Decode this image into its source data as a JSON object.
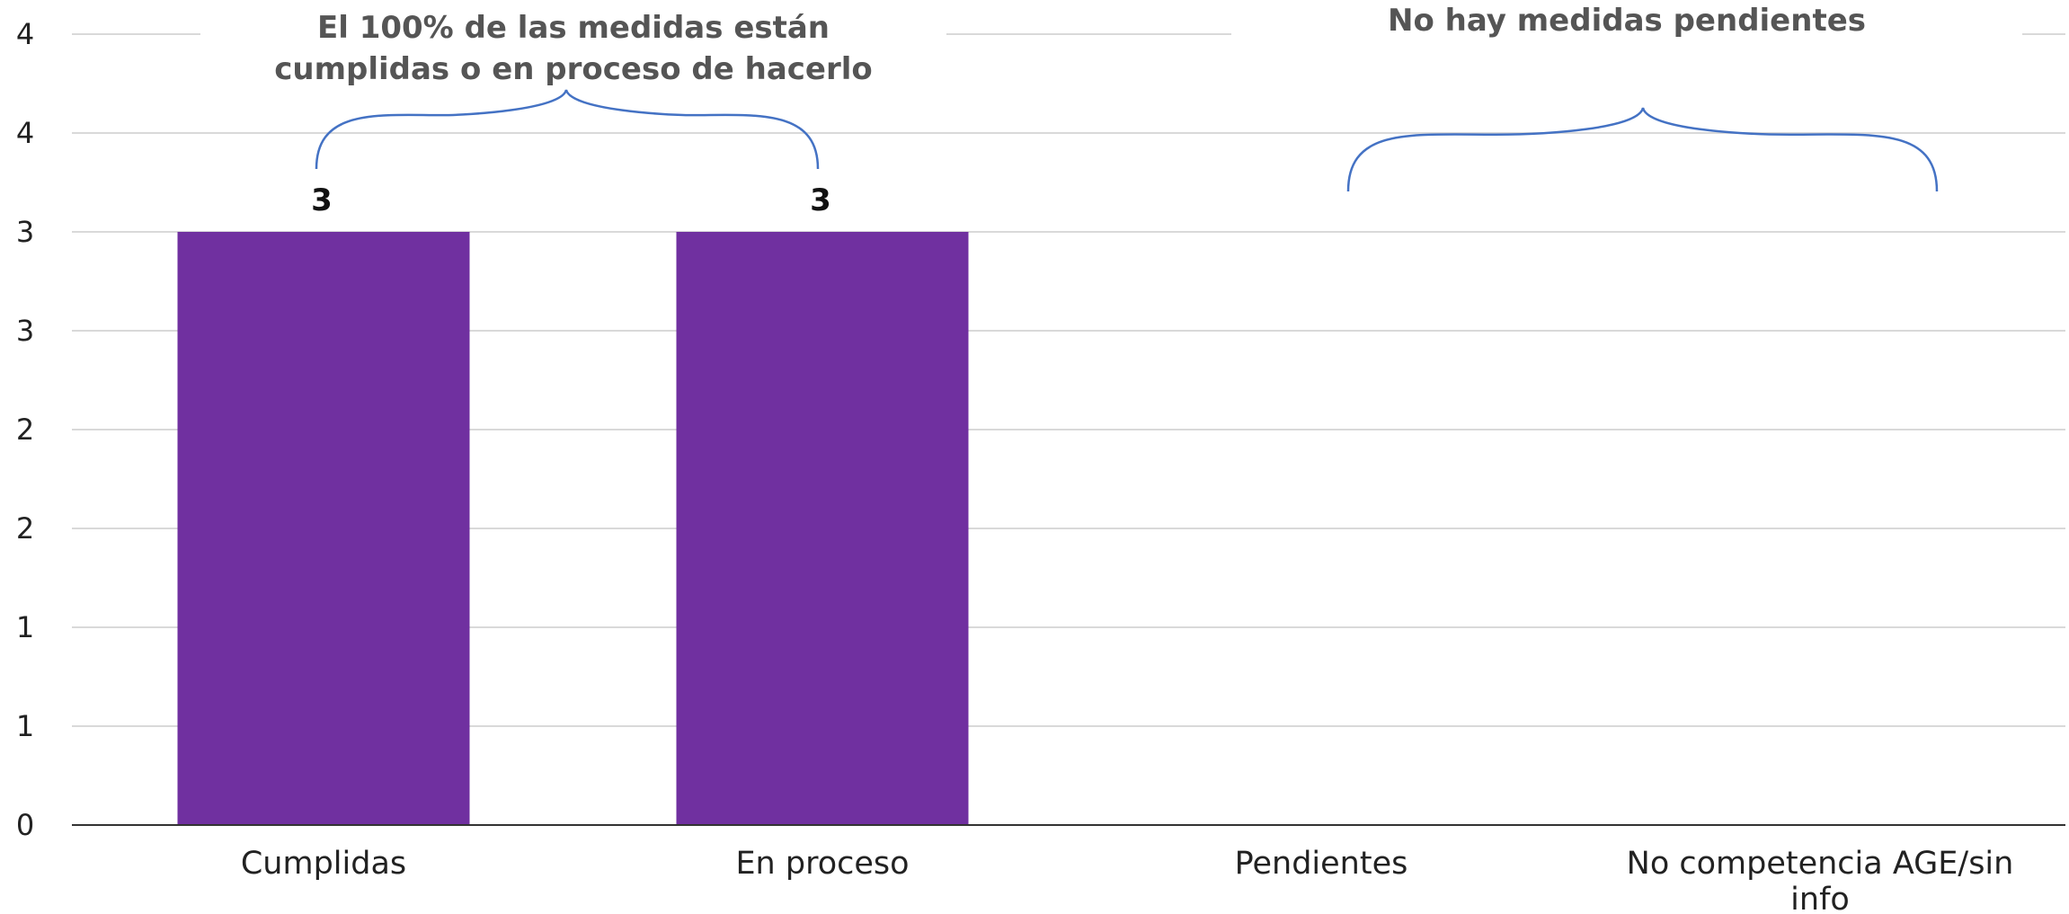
{
  "chart_data": {
    "type": "bar",
    "categories": [
      "Cumplidas",
      "En proceso",
      "Pendientes",
      "No competencia AGE/sin info"
    ],
    "category_label_lines": [
      [
        "Cumplidas"
      ],
      [
        "En proceso"
      ],
      [
        "Pendientes"
      ],
      [
        "No competencia AGE/sin",
        "info"
      ]
    ],
    "values": [
      3,
      3,
      0,
      0
    ],
    "data_labels": [
      "3",
      "3",
      "",
      ""
    ],
    "ylim": [
      0,
      4
    ],
    "y_ticks": [
      0,
      0.5,
      1,
      1.5,
      2,
      2.5,
      3,
      3.5,
      4
    ],
    "y_tick_labels": [
      "0",
      "1",
      "1",
      "2",
      "2",
      "3",
      "3",
      "4",
      "4"
    ],
    "grid": true,
    "bar_color": "#7030a0",
    "annotations": [
      {
        "lines": [
          "El 100% de las medidas están",
          "cumplidas o en proceso de hacerlo"
        ],
        "spans": [
          0,
          1
        ]
      },
      {
        "lines": [
          "No hay medidas pendientes"
        ],
        "spans": [
          2,
          3
        ]
      }
    ],
    "brace_color": "#4472c4"
  }
}
